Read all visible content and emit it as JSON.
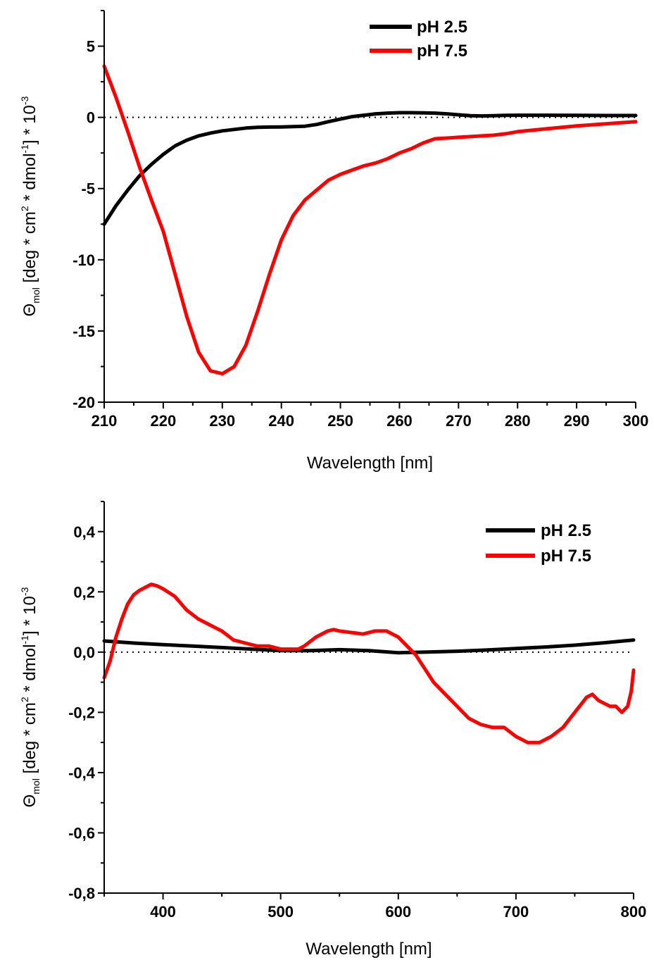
{
  "chart_data": [
    {
      "type": "line",
      "xlabel": "Wavelength [nm]",
      "ylabel_symbol": "Θ",
      "ylabel_subscript": "mol",
      "ylabel_part1": " [deg * cm",
      "ylabel_sup1": "2",
      "ylabel_part2": " * dmol",
      "ylabel_sup2": "-1",
      "ylabel_part3": "] * 10",
      "ylabel_sup3": "-3",
      "xlim": [
        210,
        300
      ],
      "ylim": [
        -20,
        7.5
      ],
      "xticks": [
        210,
        220,
        230,
        240,
        250,
        260,
        270,
        280,
        290,
        300
      ],
      "xtick_labels": [
        "210",
        "220",
        "230",
        "240",
        "250",
        "260",
        "270",
        "280",
        "290",
        "300"
      ],
      "yticks": [
        5,
        0,
        -5,
        -10,
        -15,
        -20
      ],
      "ytick_labels": [
        "5",
        "0",
        "-5",
        "-10",
        "-15",
        "-20"
      ],
      "zero_line": true,
      "legend_position": "top-right",
      "series": [
        {
          "name": "pH 2.5",
          "color": "#000000",
          "x": [
            210,
            212,
            214,
            216,
            218,
            220,
            222,
            224,
            226,
            228,
            230,
            232,
            234,
            236,
            238,
            240,
            242,
            244,
            246,
            248,
            250,
            252,
            254,
            256,
            258,
            260,
            262,
            264,
            266,
            268,
            270,
            272,
            274,
            276,
            278,
            280,
            285,
            290,
            295,
            300
          ],
          "y": [
            -7.5,
            -6.2,
            -5.1,
            -4.1,
            -3.3,
            -2.6,
            -2.0,
            -1.6,
            -1.3,
            -1.1,
            -0.95,
            -0.85,
            -0.75,
            -0.7,
            -0.68,
            -0.67,
            -0.65,
            -0.62,
            -0.5,
            -0.3,
            -0.12,
            0.05,
            0.15,
            0.25,
            0.3,
            0.33,
            0.33,
            0.32,
            0.3,
            0.25,
            0.18,
            0.12,
            0.1,
            0.12,
            0.14,
            0.15,
            0.15,
            0.14,
            0.13,
            0.13
          ]
        },
        {
          "name": "pH 7.5",
          "color": "#ff0000",
          "x": [
            210,
            212,
            214,
            216,
            218,
            220,
            222,
            224,
            226,
            228,
            230,
            232,
            234,
            236,
            238,
            240,
            242,
            244,
            246,
            248,
            250,
            252,
            254,
            256,
            258,
            260,
            262,
            264,
            266,
            268,
            270,
            272,
            274,
            276,
            278,
            280,
            285,
            290,
            295,
            300
          ],
          "y": [
            3.6,
            1.4,
            -1.0,
            -3.5,
            -5.8,
            -8.0,
            -11.0,
            -14.0,
            -16.5,
            -17.8,
            -18.0,
            -17.5,
            -16.0,
            -13.6,
            -11.0,
            -8.6,
            -6.9,
            -5.8,
            -5.1,
            -4.4,
            -4.0,
            -3.7,
            -3.4,
            -3.2,
            -2.9,
            -2.5,
            -2.2,
            -1.8,
            -1.5,
            -1.45,
            -1.4,
            -1.35,
            -1.3,
            -1.25,
            -1.15,
            -1.0,
            -0.8,
            -0.6,
            -0.45,
            -0.3
          ]
        }
      ]
    },
    {
      "type": "line",
      "xlabel": "Wavelength [nm]",
      "ylabel_symbol": "Θ",
      "ylabel_subscript": "mol",
      "ylabel_part1": " [deg * cm",
      "ylabel_sup1": "2",
      "ylabel_part2": " * dmol",
      "ylabel_sup2": "-1",
      "ylabel_part3": "] * 10",
      "ylabel_sup3": "-3",
      "xlim": [
        350,
        800
      ],
      "ylim": [
        -0.8,
        0.5
      ],
      "xticks": [
        400,
        500,
        600,
        700,
        800
      ],
      "xtick_labels": [
        "400",
        "500",
        "600",
        "700",
        "800"
      ],
      "yticks": [
        0.4,
        0.2,
        0.0,
        -0.2,
        -0.4,
        -0.6,
        -0.8
      ],
      "ytick_labels": [
        "0,4",
        "0,2",
        "0,0",
        "-0,2",
        "-0,4",
        "-0,6",
        "-0,8"
      ],
      "zero_line": true,
      "legend_position": "top-right",
      "series": [
        {
          "name": "pH 2.5",
          "color": "#000000",
          "x": [
            350,
            375,
            400,
            425,
            450,
            475,
            500,
            525,
            550,
            575,
            600,
            625,
            650,
            675,
            700,
            725,
            750,
            775,
            800
          ],
          "y": [
            0.037,
            0.03,
            0.025,
            0.02,
            0.015,
            0.01,
            0.005,
            0.005,
            0.008,
            0.005,
            -0.002,
            0.0,
            0.003,
            0.007,
            0.012,
            0.017,
            0.023,
            0.031,
            0.04
          ]
        },
        {
          "name": "pH 7.5",
          "color": "#ff0000",
          "x": [
            350,
            355,
            360,
            365,
            370,
            375,
            380,
            385,
            390,
            395,
            400,
            410,
            420,
            430,
            440,
            450,
            460,
            470,
            480,
            490,
            500,
            510,
            515,
            520,
            530,
            540,
            545,
            550,
            560,
            570,
            580,
            590,
            600,
            610,
            615,
            620,
            630,
            640,
            650,
            660,
            670,
            680,
            690,
            700,
            710,
            720,
            730,
            740,
            750,
            760,
            765,
            770,
            780,
            785,
            790,
            795,
            798,
            800
          ],
          "y": [
            -0.085,
            -0.03,
            0.05,
            0.11,
            0.16,
            0.19,
            0.205,
            0.215,
            0.225,
            0.22,
            0.21,
            0.185,
            0.14,
            0.11,
            0.09,
            0.07,
            0.04,
            0.03,
            0.02,
            0.02,
            0.01,
            0.01,
            0.01,
            0.02,
            0.05,
            0.07,
            0.075,
            0.07,
            0.065,
            0.06,
            0.07,
            0.07,
            0.05,
            0.01,
            -0.01,
            -0.04,
            -0.1,
            -0.14,
            -0.18,
            -0.22,
            -0.24,
            -0.25,
            -0.25,
            -0.28,
            -0.3,
            -0.3,
            -0.28,
            -0.25,
            -0.2,
            -0.15,
            -0.14,
            -0.16,
            -0.18,
            -0.18,
            -0.2,
            -0.18,
            -0.13,
            -0.06
          ]
        }
      ]
    }
  ]
}
